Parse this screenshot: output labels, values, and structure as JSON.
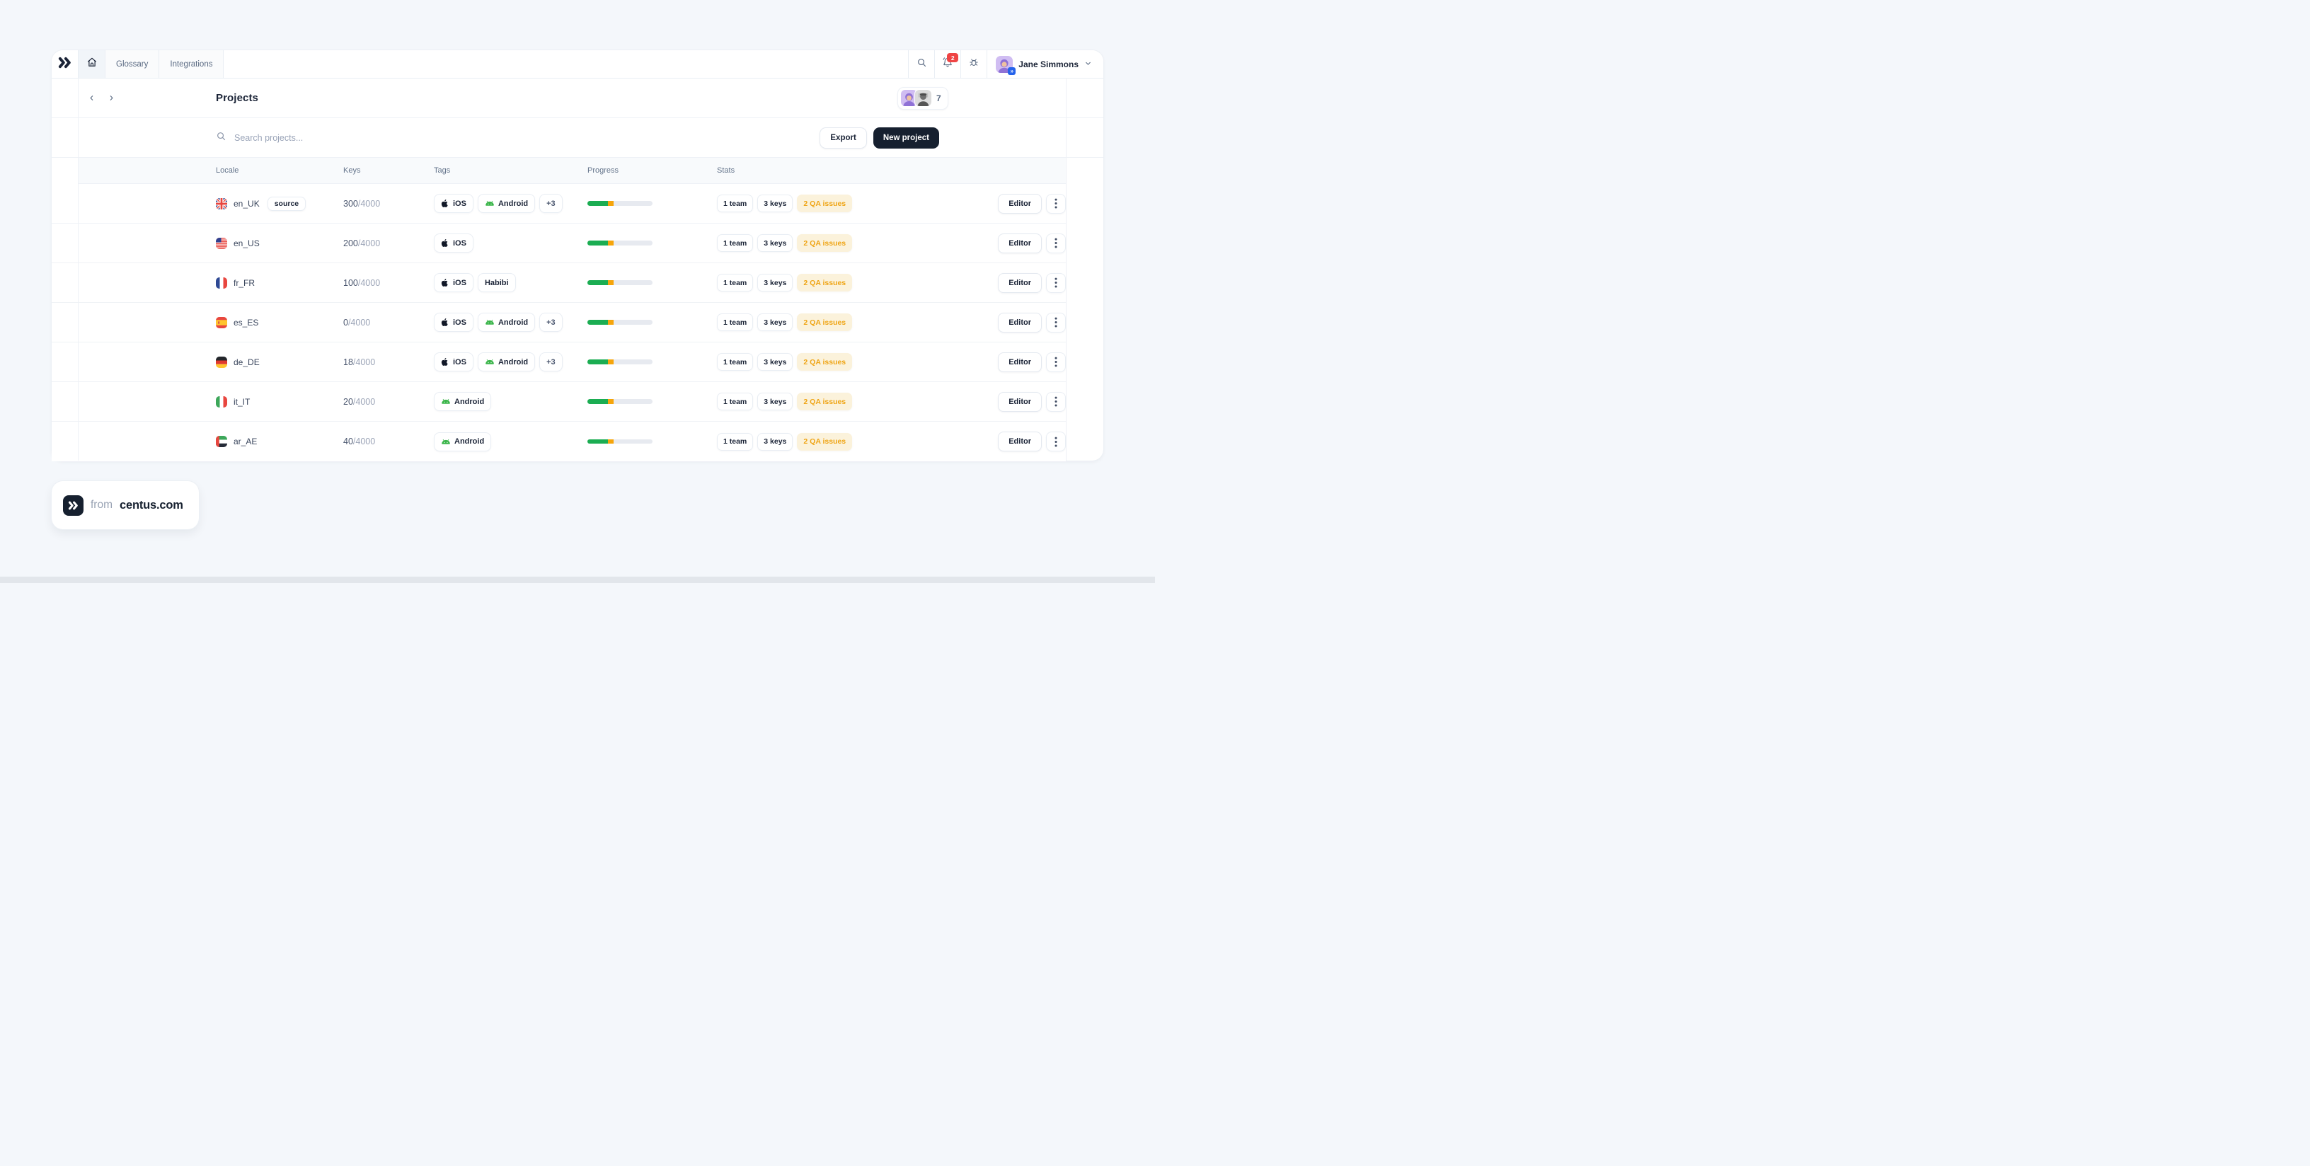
{
  "topbar": {
    "tabs": [
      {
        "label": "Glossary"
      },
      {
        "label": "Integrations"
      }
    ],
    "notifications_badge": "2",
    "user_name": "Jane Simmons"
  },
  "header": {
    "title": "Projects",
    "collaborators_count": "7"
  },
  "toolbar": {
    "search_placeholder": "Search projects...",
    "export_label": "Export",
    "new_project_label": "New project"
  },
  "table": {
    "columns": [
      "Locale",
      "Keys",
      "Tags",
      "Progress",
      "Stats"
    ],
    "rows": [
      {
        "flag": "gb",
        "locale": "en_UK",
        "badge": "source",
        "keys": "300",
        "keys_total": "/4000",
        "tags": [
          {
            "icon": "apple",
            "label": "iOS"
          },
          {
            "icon": "android",
            "label": "Android"
          },
          {
            "label": "+3"
          }
        ],
        "progress": {
          "green": 32,
          "orange": 8
        },
        "stats": {
          "team": "1 team",
          "keys": "3 keys",
          "qa": "2 QA issues"
        },
        "action": "Editor"
      },
      {
        "flag": "us",
        "locale": "en_US",
        "keys": "200",
        "keys_total": "/4000",
        "tags": [
          {
            "icon": "apple",
            "label": "iOS"
          }
        ],
        "progress": {
          "green": 32,
          "orange": 8
        },
        "stats": {
          "team": "1 team",
          "keys": "3 keys",
          "qa": "2 QA issues"
        },
        "action": "Editor"
      },
      {
        "flag": "fr",
        "locale": "fr_FR",
        "keys": "100",
        "keys_total": "/4000",
        "tags": [
          {
            "icon": "apple",
            "label": "iOS"
          },
          {
            "label": "Habibi"
          }
        ],
        "progress": {
          "green": 32,
          "orange": 8
        },
        "stats": {
          "team": "1 team",
          "keys": "3 keys",
          "qa": "2 QA issues"
        },
        "action": "Editor"
      },
      {
        "flag": "es",
        "locale": "es_ES",
        "keys": "0",
        "keys_total": "/4000",
        "tags": [
          {
            "icon": "apple",
            "label": "iOS"
          },
          {
            "icon": "android",
            "label": "Android"
          },
          {
            "label": "+3"
          }
        ],
        "progress": {
          "green": 32,
          "orange": 8
        },
        "stats": {
          "team": "1 team",
          "keys": "3 keys",
          "qa": "2 QA issues"
        },
        "action": "Editor"
      },
      {
        "flag": "de",
        "locale": "de_DE",
        "keys": "18",
        "keys_total": "/4000",
        "tags": [
          {
            "icon": "apple",
            "label": "iOS"
          },
          {
            "icon": "android",
            "label": "Android"
          },
          {
            "label": "+3"
          }
        ],
        "progress": {
          "green": 32,
          "orange": 8
        },
        "stats": {
          "team": "1 team",
          "keys": "3 keys",
          "qa": "2 QA issues"
        },
        "action": "Editor"
      },
      {
        "flag": "it",
        "locale": "it_IT",
        "keys": "20",
        "keys_total": "/4000",
        "tags": [
          {
            "icon": "android",
            "label": "Android"
          }
        ],
        "progress": {
          "green": 32,
          "orange": 8
        },
        "stats": {
          "team": "1 team",
          "keys": "3 keys",
          "qa": "2 QA issues"
        },
        "action": "Editor"
      },
      {
        "flag": "ae",
        "locale": "ar_AE",
        "keys": "40",
        "keys_total": "/4000",
        "tags": [
          {
            "icon": "android",
            "label": "Android"
          }
        ],
        "progress": {
          "green": 32,
          "orange": 8
        },
        "stats": {
          "team": "1 team",
          "keys": "3 keys",
          "qa": "2 QA issues"
        },
        "action": "Editor"
      }
    ]
  },
  "footer": {
    "prefix": "from",
    "brand": "centus.com"
  },
  "colors": {
    "accent_dark": "#16202F",
    "progress_green": "#1BAD52",
    "progress_orange": "#F6A50B",
    "qa_text": "#EFA413",
    "qa_bg": "#FBF2DB",
    "notification_red": "#EF4444",
    "android_green": "#3BB54A"
  }
}
